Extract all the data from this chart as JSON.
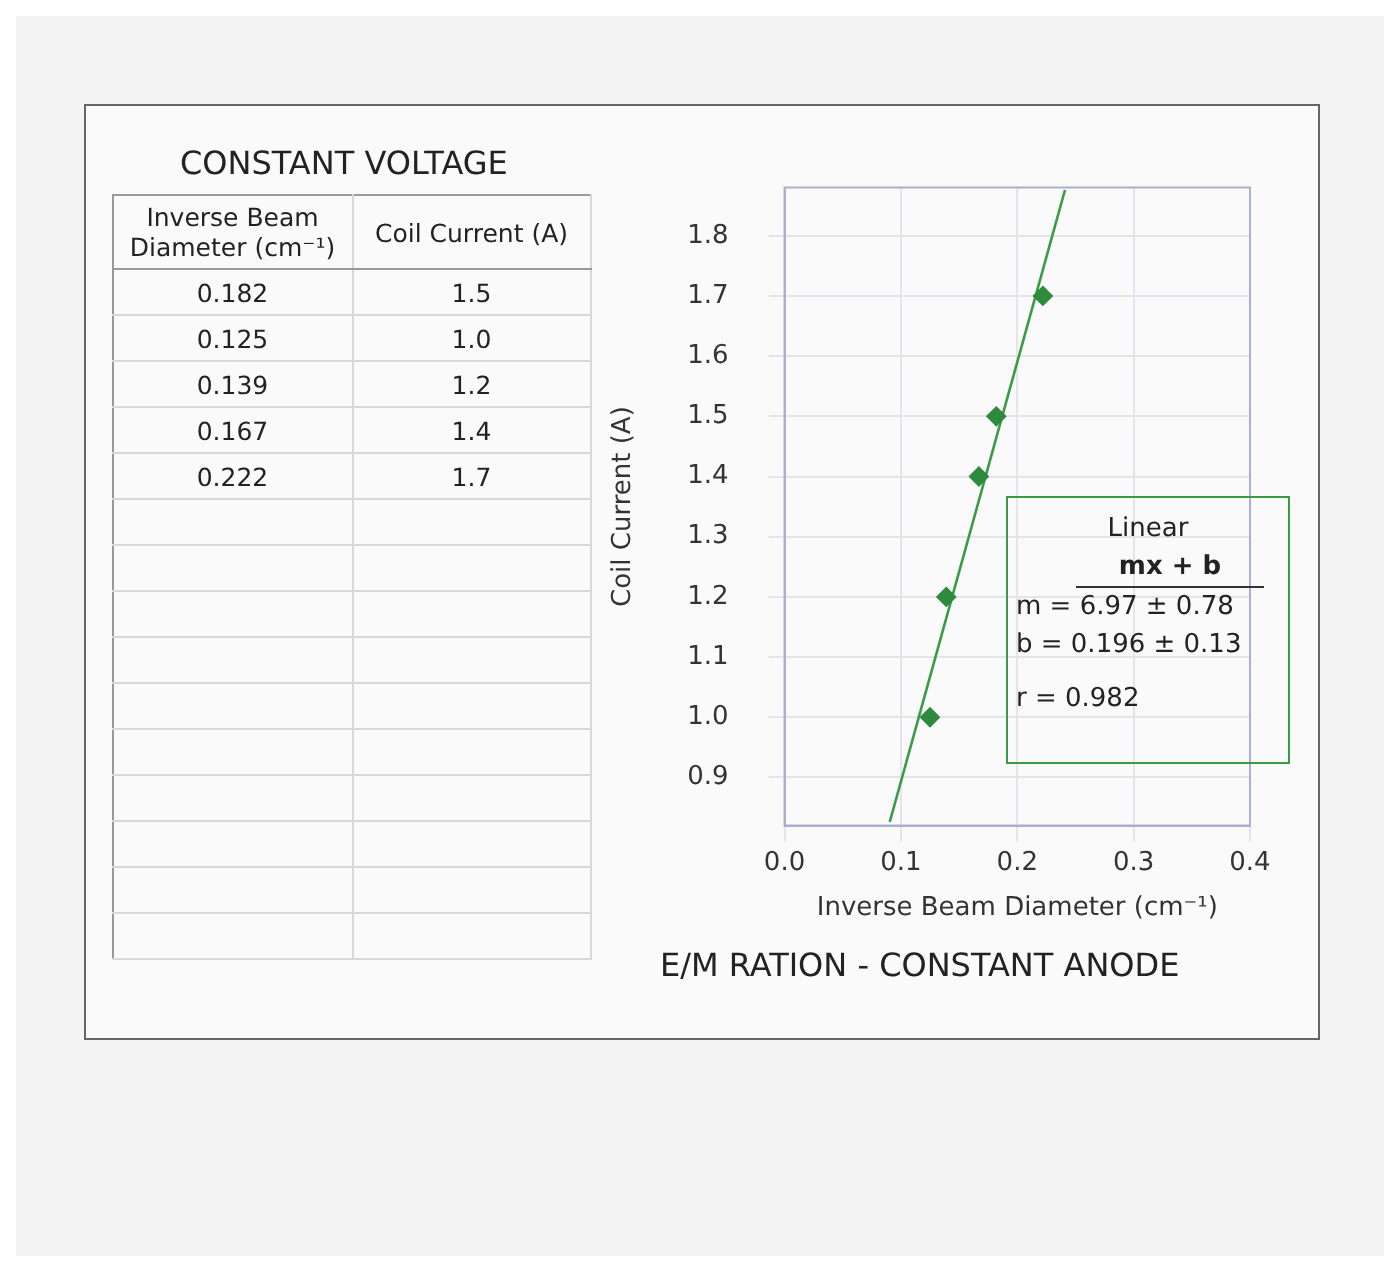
{
  "chart_data": [
    {
      "type": "other",
      "title": "CONSTANT VOLTAGE",
      "annotations": [
        "Inverse Beam Diameter (cm⁻¹)",
        "Coil Current (A)",
        "0.182",
        "1.5",
        "0.125",
        "1.0",
        "0.139",
        "1.2",
        "0.167",
        "1.4",
        "0.222",
        "1.7"
      ]
    },
    {
      "type": "scatter",
      "title": "E/M RATION - CONSTANT ANODE",
      "xlabel": "Inverse Beam Diameter (cm⁻¹)",
      "ylabel": "Coil Current (A)",
      "series": [
        {
          "type": "scatter",
          "color": "#2e8b3e",
          "x": [
            0.182,
            0.125,
            0.139,
            0.167,
            0.222
          ],
          "values": [
            1.5,
            1.0,
            1.2,
            1.4,
            1.7
          ]
        },
        {
          "type": "line",
          "color": "#3a9a46",
          "marker": "none",
          "x": [
            0.0904,
            0.241
          ],
          "values": [
            0.826,
            1.876
          ]
        }
      ],
      "xlim": [
        0,
        0.4
      ],
      "xticks": [
        {
          "value": 0,
          "label": "0.0"
        },
        0.1,
        0.2,
        0.3,
        0.4
      ],
      "ylim": [
        0.82,
        1.88
      ],
      "yticks": [
        0.9,
        {
          "value": 1,
          "label": "1.0"
        },
        1.1,
        1.2,
        1.3,
        1.4,
        1.5,
        1.6,
        1.7,
        1.8
      ],
      "grid": true,
      "marker": "diamond",
      "line_style": "solid",
      "annotations": [
        "Linear",
        "mx + b",
        "m = 6.97 ± 0.78",
        "b = 0.196 ± 0.13",
        "r = 0.982"
      ]
    }
  ]
}
